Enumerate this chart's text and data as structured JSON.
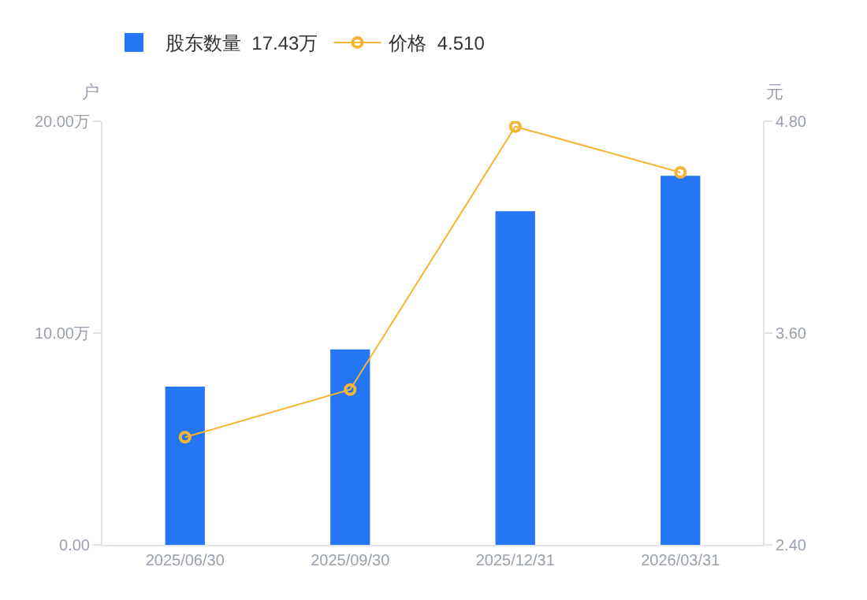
{
  "chart_data": {
    "type": "bar",
    "categories": [
      "2025/06/30",
      "2025/09/30",
      "2025/12/31",
      "2026/03/31"
    ],
    "series": [
      {
        "name": "股东数量  17.43万",
        "color": "#2476f3",
        "values": [
          7.47,
          9.23,
          15.75,
          17.43
        ]
      },
      {
        "name": "价格  4.510",
        "type": "line",
        "axis": "y2",
        "color": "#f5b532",
        "values": [
          3.01,
          3.28,
          4.77,
          4.51
        ]
      }
    ],
    "ylabel": "户",
    "y2label": "元",
    "ylim": [
      0,
      20
    ],
    "yticks": [
      {
        "value": 0,
        "label": "0.00"
      },
      {
        "value": 10,
        "label": "10.00万"
      },
      {
        "value": 20,
        "label": "20.00万"
      }
    ],
    "y2lim": [
      2.4,
      4.8
    ],
    "y2ticks": [
      {
        "value": 2.4,
        "label": "2.40"
      },
      {
        "value": 3.6,
        "label": "3.60"
      },
      {
        "value": 4.8,
        "label": "4.80"
      }
    ],
    "marker": "circle",
    "line_style": "solid",
    "legend": "top left",
    "grid": false
  }
}
